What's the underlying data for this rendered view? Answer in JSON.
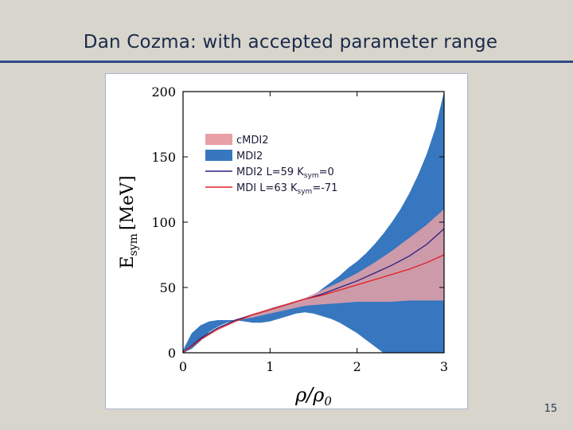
{
  "slide": {
    "title": "Dan Cozma: with accepted parameter range",
    "page_number": "15"
  },
  "colors": {
    "background": "#d8d5cc",
    "title_rule": "#2f4a88",
    "mdi2_band": "#3677bf",
    "cmdi2_band": "#e8a0a6",
    "line_mdi2": "#2a2080",
    "line_mdi": "#e02020"
  },
  "chart_data": {
    "type": "area",
    "xlabel": "ρ/ρ",
    "xlabel_sub": "0",
    "ylabel": "E",
    "ylabel_sub": "sym",
    "ylabel_unit": "[MeV]",
    "xlim": [
      0,
      3
    ],
    "ylim": [
      0,
      200
    ],
    "xticks": [
      0,
      1,
      2,
      3
    ],
    "yticks": [
      0,
      50,
      100,
      150,
      200
    ],
    "grid": false,
    "legend_position": "upper-left",
    "legend": [
      {
        "label": "cMDI2",
        "kind": "patch",
        "color": "#e8a0a6"
      },
      {
        "label": "MDI2",
        "kind": "patch",
        "color": "#3677bf"
      },
      {
        "label": "MDI2 L=59 K",
        "sub": "sym",
        "tail": "=0",
        "kind": "line",
        "color": "#2a2080"
      },
      {
        "label": "MDI L=63 K",
        "sub": "sym",
        "tail": "=-71",
        "kind": "line",
        "color": "#e02020"
      }
    ],
    "series": [
      {
        "name": "MDI2",
        "kind": "band",
        "color": "#3677bf",
        "x": [
          0,
          0.1,
          0.2,
          0.3,
          0.4,
          0.5,
          0.6,
          0.7,
          0.8,
          0.9,
          1.0,
          1.1,
          1.2,
          1.3,
          1.4,
          1.5,
          1.6,
          1.7,
          1.8,
          1.9,
          2.0,
          2.1,
          2.2,
          2.3,
          2.4,
          2.5,
          2.6,
          2.7,
          2.8,
          2.9,
          3.0
        ],
        "upper": [
          2,
          15,
          21,
          24,
          25,
          25,
          25,
          26,
          28,
          31,
          34,
          36,
          37,
          38,
          40,
          44,
          49,
          54,
          59,
          65,
          70,
          76,
          83,
          91,
          100,
          110,
          122,
          136,
          152,
          172,
          200
        ],
        "lower": [
          0,
          3,
          9,
          16,
          20,
          23,
          25,
          24,
          23,
          23,
          24,
          26,
          28,
          30,
          31,
          30,
          28,
          26,
          23,
          19,
          15,
          10,
          5,
          0,
          0,
          0,
          0,
          0,
          0,
          0,
          0
        ]
      },
      {
        "name": "cMDI2",
        "kind": "band",
        "color": "#e8a0a6",
        "x": [
          0.6,
          0.8,
          1.0,
          1.2,
          1.4,
          1.6,
          1.8,
          2.0,
          2.2,
          2.4,
          2.6,
          2.8,
          3.0
        ],
        "upper": [
          25,
          30,
          34,
          38,
          42,
          48,
          54,
          61,
          69,
          78,
          88,
          98,
          110
        ],
        "lower": [
          25,
          27,
          30,
          33,
          36,
          37,
          38,
          39,
          39,
          39,
          40,
          40,
          40
        ]
      },
      {
        "name": "MDI2 L=59 Ksym=0",
        "kind": "line",
        "color": "#2a2080",
        "x": [
          0,
          0.2,
          0.4,
          0.6,
          0.8,
          1.0,
          1.2,
          1.4,
          1.6,
          1.8,
          2.0,
          2.2,
          2.4,
          2.6,
          2.8,
          3.0
        ],
        "y": [
          0,
          11,
          19,
          25,
          29,
          33,
          37,
          41,
          45,
          50,
          55,
          61,
          67,
          74,
          83,
          95
        ]
      },
      {
        "name": "MDI L=63 Ksym=-71",
        "kind": "line",
        "color": "#e02020",
        "x": [
          0,
          0.2,
          0.4,
          0.6,
          0.8,
          1.0,
          1.2,
          1.4,
          1.6,
          1.8,
          2.0,
          2.2,
          2.4,
          2.6,
          2.8,
          3.0
        ],
        "y": [
          0,
          10,
          18,
          24,
          29,
          33,
          37,
          41,
          44,
          48,
          52,
          56,
          60,
          64,
          69,
          75
        ]
      }
    ]
  }
}
